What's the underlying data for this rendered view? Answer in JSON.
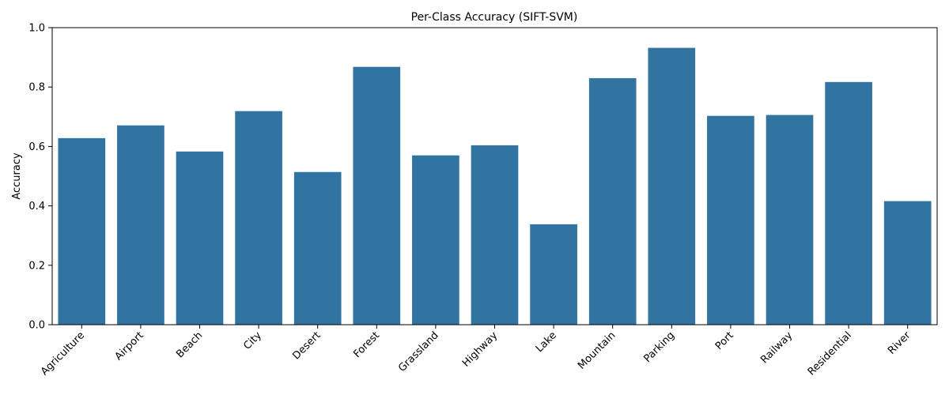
{
  "chart_data": {
    "type": "bar",
    "title": "Per-Class Accuracy (SIFT-SVM)",
    "xlabel": "",
    "ylabel": "Accuracy",
    "ylim": [
      0,
      1
    ],
    "yticks": [
      "0.0",
      "0.2",
      "0.4",
      "0.6",
      "0.8",
      "1.0"
    ],
    "grid": false,
    "bar_color": "#3274a1",
    "categories": [
      "Agriculture",
      "Airport",
      "Beach",
      "City",
      "Desert",
      "Forest",
      "Grassland",
      "Highway",
      "Lake",
      "Mountain",
      "Parking",
      "Port",
      "Railway",
      "Residential",
      "River"
    ],
    "values": [
      0.628,
      0.671,
      0.583,
      0.719,
      0.514,
      0.868,
      0.57,
      0.604,
      0.338,
      0.83,
      0.932,
      0.703,
      0.706,
      0.817,
      0.416
    ]
  }
}
